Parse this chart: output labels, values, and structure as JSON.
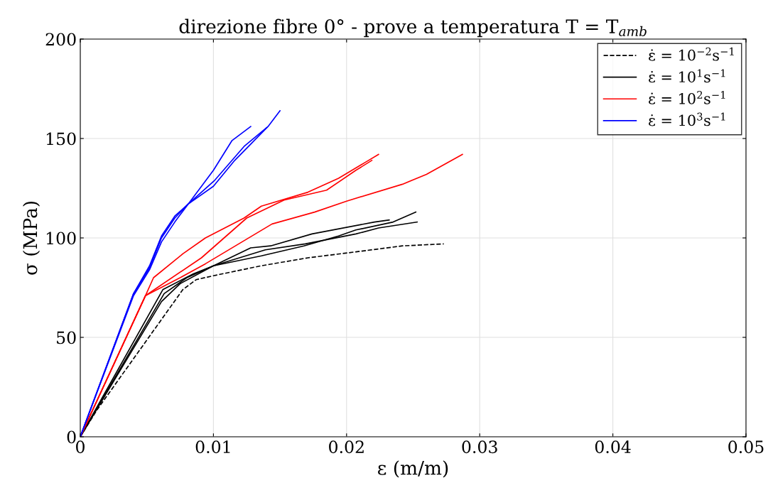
{
  "chart_data": {
    "type": "line",
    "title": "direzione fibre 0° - prove a temperatura T = T$_{amb}$",
    "xlabel": "ε (m/m)",
    "ylabel": "σ (MPa)",
    "xlim": [
      0,
      0.05
    ],
    "ylim": [
      0,
      200
    ],
    "xticks": [
      0,
      0.01,
      0.02,
      0.03,
      0.04,
      0.05
    ],
    "yticks": [
      0,
      50,
      100,
      150,
      200
    ],
    "grid": true,
    "legend": "top right",
    "marker": "none",
    "series": [
      {
        "name": "ε̇ = 10$^{−2}$s$^{−1}$",
        "color": "#000000",
        "line_style": "dashed",
        "x": [
          0,
          0.0012,
          0.0077,
          0.0087,
          0.01,
          0.0136,
          0.0171,
          0.0207,
          0.0242,
          0.0273
        ],
        "values": [
          0,
          13,
          74,
          79,
          81,
          86,
          90,
          93,
          96,
          97
        ]
      },
      {
        "name": "ε̇ = 10$^{1}$s$^{−1}$",
        "color": "#000000",
        "line_style": "solid",
        "x": [
          0,
          0.0061,
          0.0075,
          0.01,
          0.0136,
          0.0168,
          0.0194,
          0.0207,
          0.0235,
          0.0252
        ],
        "values": [
          0,
          68,
          77,
          86,
          91,
          96,
          101,
          104,
          108,
          113
        ]
      },
      {
        "color": "#000000",
        "line_style": "solid",
        "x": [
          0,
          0.0063,
          0.008,
          0.01,
          0.0139,
          0.0169,
          0.0207,
          0.0224,
          0.0253
        ],
        "values": [
          0,
          72,
          80,
          86,
          94,
          97,
          102,
          105,
          108
        ]
      },
      {
        "color": "#000000",
        "line_style": "solid",
        "x": [
          0,
          0.0062,
          0.0085,
          0.01,
          0.0128,
          0.0143,
          0.0174,
          0.0221,
          0.0232
        ],
        "values": [
          0,
          74,
          82,
          86,
          95,
          96,
          102,
          108,
          109
        ]
      },
      {
        "name": "ε̇ = 10$^{2}$s$^{−1}$",
        "color": "#ff0000",
        "line_style": "solid",
        "x": [
          0,
          0.0049,
          0.0055,
          0.0077,
          0.0094,
          0.0123,
          0.0136,
          0.0171,
          0.0194,
          0.0214,
          0.0224
        ],
        "values": [
          0,
          71,
          80,
          92,
          100,
          110,
          116,
          123,
          130,
          138,
          142
        ]
      },
      {
        "color": "#ff0000",
        "line_style": "solid",
        "x": [
          0,
          0.0049,
          0.0091,
          0.0125,
          0.0153,
          0.0185,
          0.0207,
          0.0219
        ],
        "values": [
          0,
          71,
          90,
          110,
          119,
          124,
          134,
          139
        ]
      },
      {
        "color": "#ff0000",
        "line_style": "solid",
        "x": [
          0,
          0.0049,
          0.0075,
          0.0094,
          0.0144,
          0.0176,
          0.02,
          0.0242,
          0.026,
          0.0287
        ],
        "values": [
          0,
          71,
          80,
          87,
          107,
          113,
          118.5,
          127,
          132,
          142
        ]
      },
      {
        "name": "ε̇ = 10$^{3}$s$^{−1}$",
        "color": "#0000ff",
        "line_style": "solid",
        "x": [
          0,
          0.004,
          0.0052,
          0.0061,
          0.0071,
          0.0081,
          0.01,
          0.0114,
          0.0128
        ],
        "values": [
          0,
          72,
          85,
          100,
          110,
          117,
          134,
          149,
          156
        ]
      },
      {
        "color": "#0000ff",
        "line_style": "solid",
        "x": [
          0,
          0.004,
          0.0052,
          0.0061,
          0.0071,
          0.0081,
          0.01,
          0.0116,
          0.0141,
          0.015
        ],
        "values": [
          0,
          71,
          84,
          98,
          108,
          117,
          126,
          139,
          156,
          164
        ]
      },
      {
        "color": "#0000ff",
        "line_style": "solid",
        "x": [
          0,
          0.004,
          0.0052,
          0.0061,
          0.0071,
          0.0081,
          0.0101,
          0.0123,
          0.014
        ],
        "values": [
          0,
          72,
          86,
          101,
          111,
          117,
          129,
          146,
          155.5
        ]
      }
    ]
  }
}
